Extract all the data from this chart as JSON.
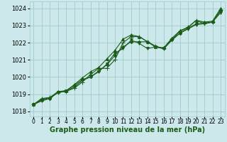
{
  "bg_color": "#cde8ea",
  "grid_color": "#9fcbcc",
  "line_color": "#1a5c1a",
  "xlabel": "Graphe pression niveau de la mer (hPa)",
  "xlabel_fontsize": 7,
  "tick_fontsize": 5.5,
  "ytick_fontsize": 6,
  "ylim": [
    1017.7,
    1024.4
  ],
  "xlim": [
    -0.5,
    23.5
  ],
  "yticks": [
    1018,
    1019,
    1020,
    1021,
    1022,
    1023,
    1024
  ],
  "xticks": [
    0,
    1,
    2,
    3,
    4,
    5,
    6,
    7,
    8,
    9,
    10,
    11,
    12,
    13,
    14,
    15,
    16,
    17,
    18,
    19,
    20,
    21,
    22,
    23
  ],
  "series": [
    [
      1018.4,
      1018.75,
      1018.8,
      1019.1,
      1019.15,
      1019.35,
      1019.7,
      1020.15,
      1020.5,
      1020.5,
      1021.0,
      1022.0,
      1022.35,
      1022.35,
      1022.05,
      1021.8,
      1021.65,
      1022.2,
      1022.65,
      1022.9,
      1023.3,
      1023.1,
      1023.2,
      1023.9
    ],
    [
      1018.4,
      1018.65,
      1018.75,
      1019.1,
      1019.2,
      1019.5,
      1019.85,
      1020.0,
      1020.35,
      1020.7,
      1021.25,
      1021.75,
      1022.05,
      1022.05,
      1022.05,
      1021.75,
      1021.65,
      1022.15,
      1022.55,
      1022.85,
      1023.1,
      1023.15,
      1023.2,
      1023.85
    ],
    [
      1018.4,
      1018.6,
      1018.75,
      1019.1,
      1019.2,
      1019.4,
      1019.8,
      1020.0,
      1020.3,
      1020.75,
      1021.4,
      1021.65,
      1022.15,
      1021.95,
      1021.65,
      1021.75,
      1021.65,
      1022.15,
      1022.55,
      1022.8,
      1023.05,
      1023.1,
      1023.2,
      1023.75
    ],
    [
      1018.4,
      1018.7,
      1018.8,
      1019.15,
      1019.2,
      1019.55,
      1019.95,
      1020.3,
      1020.55,
      1021.05,
      1021.55,
      1022.2,
      1022.45,
      1022.35,
      1022.05,
      1021.75,
      1021.7,
      1022.25,
      1022.7,
      1022.9,
      1023.3,
      1023.2,
      1023.25,
      1024.0
    ]
  ]
}
